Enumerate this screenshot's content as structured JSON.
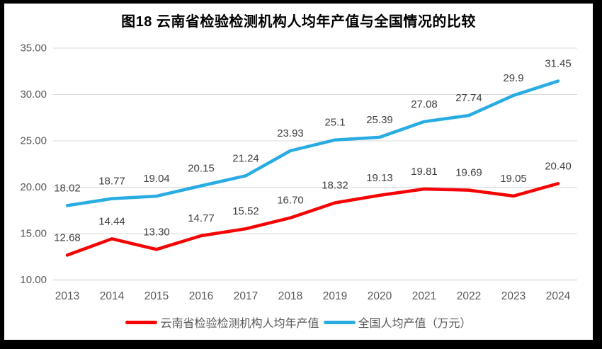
{
  "title": "图18 云南省检验检测机构人均年产值与全国情况的比较",
  "chart_data": {
    "type": "line",
    "categories": [
      "2013",
      "2014",
      "2015",
      "2016",
      "2017",
      "2018",
      "2019",
      "2020",
      "2021",
      "2022",
      "2023",
      "2024"
    ],
    "series": [
      {
        "name": "云南省检验检测机构人均年产值",
        "color": "#F40404",
        "values": [
          12.68,
          14.44,
          13.3,
          14.77,
          15.52,
          16.7,
          18.32,
          19.13,
          19.81,
          19.69,
          19.05,
          20.4
        ],
        "labels": [
          "12.68",
          "14.44",
          "13.30",
          "14.77",
          "15.52",
          "16.70",
          "18.32",
          "19.13",
          "19.81",
          "19.69",
          "19.05",
          "20.40"
        ]
      },
      {
        "name": "全国人均产值（万元）",
        "color": "#29ACE2",
        "values": [
          18.02,
          18.77,
          19.04,
          20.15,
          21.24,
          23.93,
          25.1,
          25.39,
          27.08,
          27.74,
          29.9,
          31.45
        ],
        "labels": [
          "18.02",
          "18.77",
          "19.04",
          "20.15",
          "21.24",
          "23.93",
          "25.1",
          "25.39",
          "27.08",
          "27.74",
          "29.9",
          "31.45"
        ]
      }
    ],
    "ylim": [
      10,
      35
    ],
    "y_ticks": [
      10,
      15,
      20,
      25,
      30,
      35
    ],
    "y_tick_labels": [
      "10.00",
      "15.00",
      "20.00",
      "25.00",
      "30.00",
      "35.00"
    ],
    "xlabel": "",
    "ylabel": "",
    "grid": true,
    "legend_position": "bottom"
  },
  "colors": {
    "grid": "#D9D9D9",
    "axis_line": "#C6C6C6",
    "axis_text": "#595959",
    "data_label": "#404040",
    "title_text": "#000000",
    "frame": "#000000",
    "background": "#FFFFFF"
  }
}
